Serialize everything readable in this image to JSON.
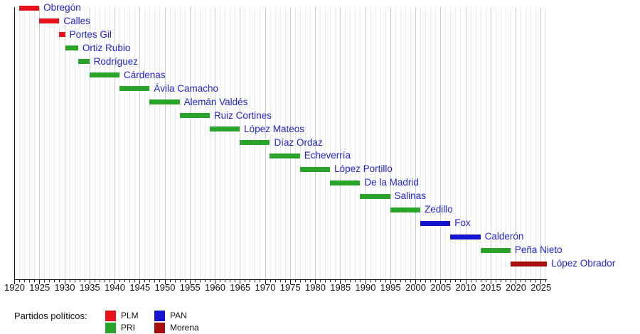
{
  "chart_data": {
    "type": "bar",
    "variant": "gantt-timeline",
    "orientation": "horizontal",
    "title": "",
    "x_axis": {
      "min": 1920,
      "max": 2026,
      "major_tick_step": 5,
      "minor_tick_step": 1,
      "tick_labels": [
        "1920",
        "1925",
        "1930",
        "1935",
        "1940",
        "1945",
        "1950",
        "1955",
        "1960",
        "1965",
        "1970",
        "1975",
        "1980",
        "1985",
        "1990",
        "1995",
        "2000",
        "2005",
        "2010",
        "2015",
        "2020",
        "2025"
      ]
    },
    "grid": {
      "on": true,
      "minor_color": "#e9e9e9",
      "major_color": "#cccccc"
    },
    "party_colors": {
      "PLM": "#e8121c",
      "PRI": "#2aa32a",
      "PAN": "#1414d2",
      "Morena": "#aa0d0d"
    },
    "bar_label_color": "#2323cc",
    "bars": [
      {
        "label": "Obregón",
        "party": "PLM",
        "start": 1920.92,
        "end": 1924.92
      },
      {
        "label": "Calles",
        "party": "PLM",
        "start": 1924.92,
        "end": 1928.92
      },
      {
        "label": "Portes Gil",
        "party": "PLM",
        "start": 1928.92,
        "end": 1930.08
      },
      {
        "label": "Ortiz Rubio",
        "party": "PRI",
        "start": 1930.08,
        "end": 1932.67
      },
      {
        "label": "Rodríguez",
        "party": "PRI",
        "start": 1932.67,
        "end": 1934.92
      },
      {
        "label": "Cárdenas",
        "party": "PRI",
        "start": 1934.92,
        "end": 1940.92
      },
      {
        "label": "Ávila Camacho",
        "party": "PRI",
        "start": 1940.92,
        "end": 1946.92
      },
      {
        "label": "Alemán Valdés",
        "party": "PRI",
        "start": 1946.92,
        "end": 1952.92
      },
      {
        "label": "Ruiz Cortines",
        "party": "PRI",
        "start": 1952.92,
        "end": 1958.92
      },
      {
        "label": "López Mateos",
        "party": "PRI",
        "start": 1958.92,
        "end": 1964.92
      },
      {
        "label": "Díaz Ordaz",
        "party": "PRI",
        "start": 1964.92,
        "end": 1970.92
      },
      {
        "label": "Echeverría",
        "party": "PRI",
        "start": 1970.92,
        "end": 1976.92
      },
      {
        "label": "López Portillo",
        "party": "PRI",
        "start": 1976.92,
        "end": 1982.92
      },
      {
        "label": "De la Madrid",
        "party": "PRI",
        "start": 1982.92,
        "end": 1988.92
      },
      {
        "label": "Salinas",
        "party": "PRI",
        "start": 1988.92,
        "end": 1994.92
      },
      {
        "label": "Zedillo",
        "party": "PRI",
        "start": 1994.92,
        "end": 2000.92
      },
      {
        "label": "Fox",
        "party": "PAN",
        "start": 2000.92,
        "end": 2006.92
      },
      {
        "label": "Calderón",
        "party": "PAN",
        "start": 2006.92,
        "end": 2012.92
      },
      {
        "label": "Peña Nieto",
        "party": "PRI",
        "start": 2012.92,
        "end": 2018.92
      },
      {
        "label": "López Obrador",
        "party": "Morena",
        "start": 2018.92,
        "end": 2026.2
      }
    ]
  },
  "legend": {
    "title": "Partidos políticos:",
    "position": "bottom-left",
    "items": [
      {
        "label": "PLM",
        "color": "#e8121c"
      },
      {
        "label": "PRI",
        "color": "#2aa32a"
      },
      {
        "label": "PAN",
        "color": "#1414d2"
      },
      {
        "label": "Morena",
        "color": "#aa0d0d"
      }
    ]
  }
}
